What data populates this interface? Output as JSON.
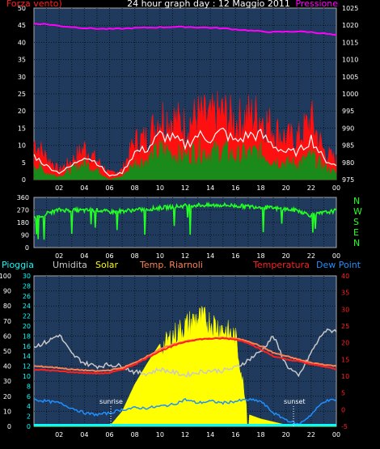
{
  "colors": {
    "background": "#000000",
    "panel_bg": "#1f3a5c",
    "grid": "#000000",
    "wind_gust": "#ff1010",
    "wind_avg": "#1a8a1a",
    "wind_line": "#ffffff",
    "pressure": "#ff00ff",
    "direction": "#22ff22",
    "rain": "#00ffff",
    "humidity": "#c8c8c8",
    "solar": "#ffff00",
    "temp_riarnoli": "#ff8050",
    "temperature": "#ff2020",
    "dew_point": "#1e90ff"
  },
  "chart_data": [
    {
      "type": "line",
      "title": "24 hour graph day : 12 Maggio 2011",
      "x_ticks": [
        "02",
        "04",
        "06",
        "08",
        "10",
        "12",
        "14",
        "16",
        "18",
        "20",
        "22",
        "00"
      ],
      "legend": {
        "left": "Forza vento)",
        "right": "Pressione"
      },
      "left_axis": {
        "ticks": [
          0,
          5,
          10,
          15,
          20,
          25,
          30,
          35,
          40,
          45,
          50
        ],
        "range": [
          0,
          50
        ]
      },
      "right_axis": {
        "ticks": [
          975,
          980,
          985,
          990,
          995,
          1000,
          1005,
          1010,
          1015,
          1020,
          1025
        ],
        "range": [
          975,
          1025
        ]
      },
      "hours": [
        0,
        1,
        2,
        3,
        4,
        5,
        6,
        7,
        8,
        9,
        10,
        11,
        12,
        13,
        14,
        15,
        16,
        17,
        18,
        19,
        20,
        21,
        22,
        23,
        24
      ],
      "series": [
        {
          "name": "Pressione",
          "axis": "right",
          "values": [
            1020.5,
            1020.3,
            1019.8,
            1019.5,
            1019.2,
            1019,
            1018.9,
            1019,
            1019.2,
            1019.3,
            1019.4,
            1019.5,
            1019.5,
            1019.4,
            1019.3,
            1019.1,
            1018.8,
            1018.5,
            1018.2,
            1018,
            1018.1,
            1018.2,
            1018,
            1017.6,
            1017.1
          ]
        },
        {
          "name": "Raffica",
          "axis": "left",
          "values": [
            12,
            7,
            3,
            6,
            10,
            6,
            2,
            3,
            12,
            13,
            20,
            19,
            17,
            20,
            19,
            21,
            18,
            20,
            20,
            16,
            13,
            13,
            19,
            9,
            6
          ]
        },
        {
          "name": "Vento",
          "axis": "left",
          "values": [
            5,
            2,
            1,
            3,
            5,
            3,
            0,
            1,
            5,
            6,
            9,
            8,
            7,
            9,
            8,
            9,
            7,
            8,
            8,
            6,
            5,
            5,
            7,
            4,
            2
          ]
        },
        {
          "name": "Media",
          "axis": "left",
          "values": [
            7,
            4,
            2,
            4,
            7,
            5,
            1,
            2,
            8,
            9,
            13,
            12,
            10,
            13,
            12,
            14,
            11,
            13,
            13,
            10,
            8,
            8,
            12,
            6,
            4
          ]
        }
      ]
    },
    {
      "type": "line",
      "x_ticks": [
        "02",
        "04",
        "06",
        "08",
        "10",
        "12",
        "14",
        "16",
        "18",
        "20",
        "22",
        "00"
      ],
      "left_axis": {
        "ticks": [
          0,
          90,
          180,
          270,
          360
        ],
        "range": [
          0,
          360
        ]
      },
      "right_labels": [
        "N",
        "W",
        "S",
        "E",
        "N"
      ],
      "hours": [
        0,
        1,
        2,
        3,
        4,
        5,
        6,
        7,
        8,
        9,
        10,
        11,
        12,
        13,
        14,
        15,
        16,
        17,
        18,
        19,
        20,
        21,
        22,
        23,
        24
      ],
      "series": [
        {
          "name": "Direzione",
          "values": [
            210,
            245,
            270,
            268,
            266,
            270,
            255,
            262,
            270,
            275,
            285,
            292,
            300,
            305,
            302,
            305,
            300,
            295,
            292,
            282,
            275,
            265,
            230,
            250,
            265
          ]
        }
      ]
    },
    {
      "type": "area",
      "x_ticks": [
        "02",
        "04",
        "06",
        "08",
        "10",
        "12",
        "14",
        "16",
        "18",
        "20",
        "22",
        "00"
      ],
      "legend": [
        "Pioggia",
        "Umidita",
        "Solar",
        "Temp. Riarnoli",
        "Temperatura",
        "Dew Point"
      ],
      "left_axis": {
        "ticks": [
          0,
          10,
          20,
          30,
          40,
          50,
          60,
          70,
          80,
          90,
          100
        ],
        "range": [
          0,
          100
        ]
      },
      "left_axis2": {
        "ticks": [
          0,
          2,
          4,
          6,
          8,
          10,
          12,
          14,
          16,
          18,
          20,
          22,
          24,
          26,
          28,
          30
        ],
        "range": [
          0,
          30
        ]
      },
      "right_axis": {
        "ticks": [
          -5,
          0,
          5,
          10,
          15,
          20,
          25,
          30,
          35,
          40
        ],
        "range": [
          -5,
          40
        ]
      },
      "annotations": [
        {
          "text": "sunrise",
          "hour": 6.1
        },
        {
          "text": "sunset",
          "hour": 20.6
        }
      ],
      "hours": [
        0,
        1,
        2,
        3,
        4,
        5,
        6,
        7,
        8,
        9,
        10,
        11,
        12,
        13,
        14,
        15,
        16,
        17,
        18,
        19,
        20,
        21,
        22,
        23,
        24
      ],
      "series": [
        {
          "name": "Solar",
          "axis": "left",
          "values": [
            0,
            0,
            0,
            0,
            0,
            0,
            0,
            10,
            28,
            42,
            55,
            65,
            72,
            78,
            75,
            70,
            64,
            8,
            5,
            3,
            1,
            0,
            0,
            0,
            0
          ]
        },
        {
          "name": "Umidita",
          "axis": "left",
          "values": [
            53,
            56,
            61,
            48,
            42,
            40,
            41,
            40,
            36,
            35,
            38,
            36,
            34,
            36,
            37,
            37,
            39,
            44,
            50,
            60,
            41,
            33,
            49,
            63,
            64
          ]
        },
        {
          "name": "Temp. Riarnoli",
          "axis": "right",
          "values": [
            13,
            12.8,
            12.5,
            12,
            11.8,
            11.5,
            11.8,
            12.5,
            14,
            16,
            18,
            19.5,
            20.5,
            21,
            21.3,
            21.5,
            21.3,
            20.5,
            19,
            17,
            16,
            15,
            14,
            13.5,
            13
          ]
        },
        {
          "name": "Temperatura",
          "axis": "right",
          "values": [
            12,
            11.8,
            11.5,
            11.2,
            11,
            10.8,
            11,
            12,
            13.5,
            15.5,
            17.5,
            19,
            20.3,
            21,
            21.2,
            21.3,
            21,
            20,
            18,
            16,
            15,
            14.5,
            13.5,
            13,
            12
          ]
        },
        {
          "name": "Dew Point",
          "axis": "right",
          "values": [
            3,
            2.5,
            2,
            0.5,
            -1,
            -1.5,
            -1,
            0,
            0.5,
            0.5,
            1,
            1.5,
            3,
            2,
            2.5,
            2,
            2.5,
            3,
            2.5,
            -1,
            -3,
            -4.5,
            -1.5,
            2.5,
            3
          ]
        },
        {
          "name": "Pioggia",
          "axis": "left",
          "values": [
            0,
            0,
            0,
            0,
            0,
            0,
            0,
            0,
            0,
            0,
            0,
            0,
            0,
            0,
            0,
            0,
            0,
            0,
            0,
            0,
            0,
            0,
            0,
            0,
            0
          ]
        }
      ]
    }
  ]
}
